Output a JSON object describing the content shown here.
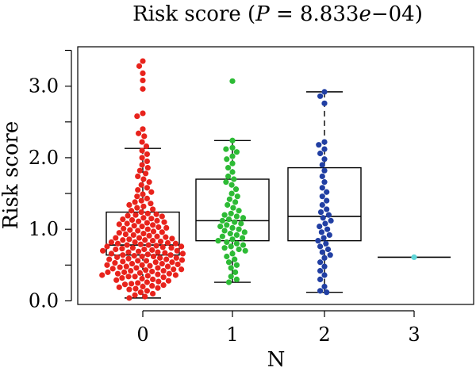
{
  "chart_data": {
    "type": "box-swarm",
    "title_prefix": "Risk score (",
    "title_p_symbol": "P",
    "title_p_value": " = 8.833",
    "title_e": "e",
    "title_exponent": "−04)",
    "xlabel": "N",
    "ylabel": "Risk score",
    "ylim": [
      -0.05,
      3.55
    ],
    "yticks": [
      {
        "value": 0.0,
        "label": "0.0"
      },
      {
        "value": 1.0,
        "label": "1.0"
      },
      {
        "value": 2.0,
        "label": "2.0"
      },
      {
        "value": 3.0,
        "label": "3.0"
      }
    ],
    "categories": [
      "0",
      "1",
      "2",
      "3"
    ],
    "colors": [
      "#e8231c",
      "#2dbb35",
      "#213fa3",
      "#5fd6d8"
    ],
    "groups": [
      {
        "category": "0",
        "box": {
          "whisker_low": 0.04,
          "q1": 0.64,
          "median": 0.78,
          "q3": 1.24,
          "whisker_high": 2.13
        },
        "points": [
          3.35,
          3.28,
          3.18,
          3.08,
          2.96,
          2.62,
          2.58,
          2.4,
          2.34,
          2.3,
          2.22,
          2.16,
          2.1,
          2.05,
          2.0,
          1.95,
          1.9,
          1.86,
          1.82,
          1.78,
          1.74,
          1.7,
          1.66,
          1.62,
          1.58,
          1.55,
          1.52,
          1.49,
          1.46,
          1.43,
          1.4,
          1.38,
          1.36,
          1.34,
          1.32,
          1.3,
          1.28,
          1.26,
          1.24,
          1.22,
          1.21,
          1.2,
          1.19,
          1.18,
          1.16,
          1.15,
          1.14,
          1.13,
          1.12,
          1.11,
          1.1,
          1.09,
          1.08,
          1.07,
          1.06,
          1.05,
          1.04,
          1.03,
          1.02,
          1.01,
          1.0,
          0.99,
          0.98,
          0.97,
          0.96,
          0.95,
          0.94,
          0.93,
          0.92,
          0.91,
          0.9,
          0.89,
          0.88,
          0.88,
          0.87,
          0.86,
          0.85,
          0.85,
          0.84,
          0.83,
          0.82,
          0.82,
          0.81,
          0.8,
          0.8,
          0.79,
          0.78,
          0.78,
          0.77,
          0.76,
          0.76,
          0.75,
          0.74,
          0.74,
          0.73,
          0.72,
          0.72,
          0.71,
          0.7,
          0.7,
          0.69,
          0.68,
          0.68,
          0.67,
          0.66,
          0.66,
          0.65,
          0.64,
          0.64,
          0.63,
          0.62,
          0.62,
          0.61,
          0.6,
          0.6,
          0.59,
          0.58,
          0.58,
          0.57,
          0.56,
          0.56,
          0.55,
          0.54,
          0.54,
          0.53,
          0.52,
          0.52,
          0.51,
          0.5,
          0.5,
          0.49,
          0.48,
          0.48,
          0.47,
          0.46,
          0.46,
          0.45,
          0.44,
          0.44,
          0.43,
          0.42,
          0.42,
          0.41,
          0.4,
          0.4,
          0.39,
          0.38,
          0.38,
          0.37,
          0.36,
          0.36,
          0.35,
          0.34,
          0.34,
          0.33,
          0.32,
          0.31,
          0.3,
          0.29,
          0.28,
          0.27,
          0.26,
          0.25,
          0.24,
          0.23,
          0.22,
          0.21,
          0.2,
          0.19,
          0.18,
          0.17,
          0.16,
          0.14,
          0.12,
          0.1,
          0.08,
          0.06,
          0.04
        ]
      },
      {
        "category": "1",
        "box": {
          "whisker_low": 0.26,
          "q1": 0.84,
          "median": 1.12,
          "q3": 1.7,
          "whisker_high": 2.24
        },
        "points": [
          3.07,
          2.24,
          2.14,
          2.12,
          2.08,
          2.02,
          1.98,
          1.92,
          1.86,
          1.8,
          1.74,
          1.7,
          1.66,
          1.62,
          1.56,
          1.5,
          1.46,
          1.42,
          1.38,
          1.34,
          1.3,
          1.26,
          1.22,
          1.2,
          1.18,
          1.16,
          1.14,
          1.12,
          1.1,
          1.08,
          1.06,
          1.04,
          1.02,
          1.0,
          0.98,
          0.96,
          0.94,
          0.92,
          0.9,
          0.88,
          0.86,
          0.84,
          0.82,
          0.8,
          0.78,
          0.76,
          0.74,
          0.72,
          0.7,
          0.66,
          0.62,
          0.58,
          0.54,
          0.5,
          0.46,
          0.4,
          0.34,
          0.3,
          0.26
        ]
      },
      {
        "category": "2",
        "box": {
          "whisker_low": 0.12,
          "q1": 0.84,
          "median": 1.18,
          "q3": 1.86,
          "whisker_high": 2.92
        },
        "points": [
          2.92,
          2.86,
          2.76,
          2.22,
          2.18,
          2.12,
          2.06,
          1.98,
          1.9,
          1.82,
          1.74,
          1.66,
          1.58,
          1.52,
          1.46,
          1.4,
          1.34,
          1.28,
          1.24,
          1.2,
          1.16,
          1.12,
          1.08,
          1.04,
          1.0,
          0.96,
          0.92,
          0.88,
          0.84,
          0.8,
          0.76,
          0.72,
          0.68,
          0.64,
          0.6,
          0.54,
          0.48,
          0.42,
          0.36,
          0.3,
          0.2,
          0.14,
          0.12
        ]
      },
      {
        "category": "3",
        "box": {
          "whisker_low": 0.61,
          "q1": 0.61,
          "median": 0.61,
          "q3": 0.61,
          "whisker_high": 0.61
        },
        "points": [
          0.61
        ]
      }
    ]
  }
}
